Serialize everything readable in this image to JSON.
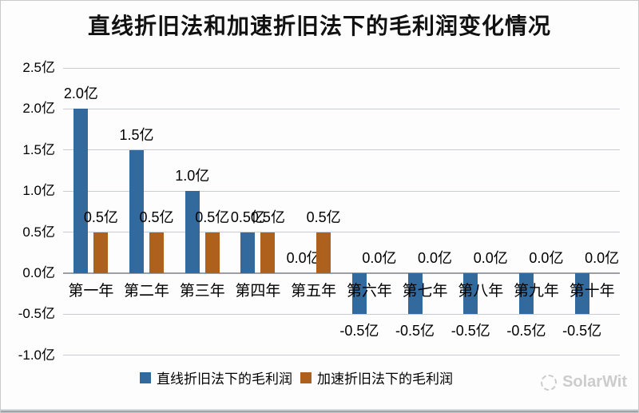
{
  "chart_data": {
    "type": "bar",
    "title": "直线折旧法和加速折旧法下的毛利润变化情况",
    "unit": "亿",
    "categories": [
      "第一年",
      "第二年",
      "第三年",
      "第四年",
      "第五年",
      "第六年",
      "第七年",
      "第八年",
      "第九年",
      "第十年"
    ],
    "series": [
      {
        "name": "直线折旧法下的毛利润",
        "color": "#336a9e",
        "values": [
          2.0,
          1.5,
          1.0,
          0.5,
          0.0,
          -0.5,
          -0.5,
          -0.5,
          -0.5,
          -0.5
        ],
        "labels": [
          "2.0亿",
          "1.5亿",
          "1.0亿",
          "0.5亿",
          "0.0亿",
          "-0.5亿",
          "-0.5亿",
          "-0.5亿",
          "-0.5亿",
          "-0.5亿"
        ]
      },
      {
        "name": "加速折旧法下的毛利润",
        "color": "#ad611c",
        "values": [
          0.5,
          0.5,
          0.5,
          0.5,
          0.5,
          0.0,
          0.0,
          0.0,
          0.0,
          0.0
        ],
        "labels": [
          "0.5亿",
          "0.5亿",
          "0.5亿",
          "0.5亿",
          "0.5亿",
          "0.0亿",
          "0.0亿",
          "0.0亿",
          "0.0亿",
          "0.0亿"
        ]
      }
    ],
    "y_ticks": [
      {
        "value": 2.5,
        "label": "2.5亿"
      },
      {
        "value": 2.0,
        "label": "2.0亿"
      },
      {
        "value": 1.5,
        "label": "1.5亿"
      },
      {
        "value": 1.0,
        "label": "1.0亿"
      },
      {
        "value": 0.5,
        "label": "0.5亿"
      },
      {
        "value": 0.0,
        "label": "0.0亿"
      },
      {
        "value": -0.5,
        "label": "-0.5亿"
      },
      {
        "value": -1.0,
        "label": "-1.0亿"
      }
    ],
    "ylim": [
      -1.0,
      2.5
    ],
    "grid": true,
    "legend_position": "bottom"
  },
  "colors": {
    "gridline": "#c8cbd0",
    "axis_line": "#9ba0a6",
    "watermark": "#cccccc"
  },
  "watermark": {
    "text": "SolarWit"
  }
}
